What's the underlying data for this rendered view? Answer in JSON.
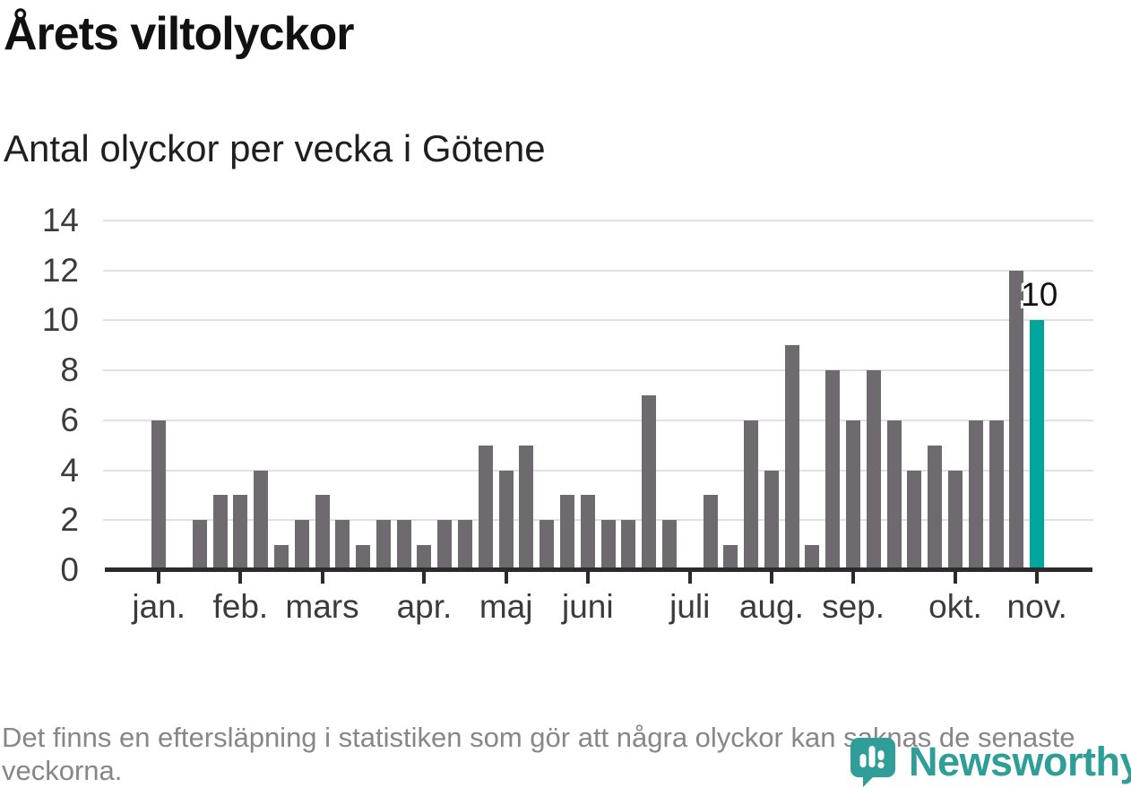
{
  "title": "Årets viltolyckor",
  "subtitle": "Antal olyckor per vecka i Götene",
  "footer_note": "Det finns en eftersläpning i statistiken som gör att några olyckor kan saknas de senaste veckorna.",
  "logo": {
    "text": "Newsworthy",
    "icon": "newsworthy-pin-barchart-icon"
  },
  "colors": {
    "bar": "#6e6a70",
    "highlight": "#00a59b",
    "grid": "#e1e1e1",
    "axis": "#2b2b2b",
    "tick_label": "#3b3b3b",
    "annotation": "#111111",
    "footer_text": "#86868b",
    "logo": "#2f9e99"
  },
  "chart_data": {
    "type": "bar",
    "title": "Årets viltolyckor",
    "subtitle": "Antal olyckor per vecka i Götene",
    "xlabel": "",
    "ylabel": "",
    "x_description": "veckor (weeks 1-44 of the year)",
    "values": [
      6,
      0,
      2,
      3,
      3,
      4,
      1,
      2,
      3,
      2,
      1,
      2,
      2,
      1,
      2,
      2,
      5,
      4,
      5,
      2,
      3,
      3,
      2,
      2,
      7,
      2,
      0,
      3,
      1,
      6,
      4,
      9,
      1,
      8,
      6,
      8,
      6,
      4,
      5,
      4,
      6,
      6,
      12,
      10
    ],
    "highlight_last_bar": true,
    "annotation": {
      "text": "10",
      "bar_index": 44
    },
    "months": [
      {
        "label": "jan.",
        "week": 1
      },
      {
        "label": "feb.",
        "week": 5
      },
      {
        "label": "mars",
        "week": 9
      },
      {
        "label": "apr.",
        "week": 14
      },
      {
        "label": "maj",
        "week": 18
      },
      {
        "label": "juni",
        "week": 22
      },
      {
        "label": "juli",
        "week": 27
      },
      {
        "label": "aug.",
        "week": 31
      },
      {
        "label": "sep.",
        "week": 35
      },
      {
        "label": "okt.",
        "week": 40
      },
      {
        "label": "nov.",
        "week": 44
      }
    ],
    "ylim": [
      0,
      14
    ],
    "yticks": [
      0,
      2,
      4,
      6,
      8,
      10,
      12,
      14
    ],
    "grid": "horizontal",
    "legend": "none"
  }
}
